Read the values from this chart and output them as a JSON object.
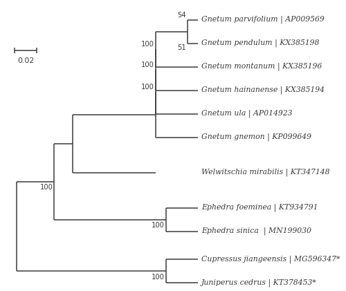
{
  "taxa": [
    "Gnetum parvifolium | AP009569",
    "Gnetum pendulum | KX385198",
    "Gnetum montanum | KX385196",
    "Gnetum hainanense | KX385194",
    "Gnetum ula | AP014923",
    "Gnetum gnemon | KP099649",
    "Welwitschia mirabilis | KT347148",
    "Ephedra foeminea | KT934791",
    "Ephedra sinica  | MN199030",
    "Cupressus jiangeensis | MG596347*",
    "Juniperus cedrus | KT378453*"
  ],
  "line_color": "#3a3a3a",
  "text_color": "#3a3a3a",
  "bg_color": "#ffffff",
  "fontsize": 7.8,
  "bootstrap_fontsize": 7.2
}
